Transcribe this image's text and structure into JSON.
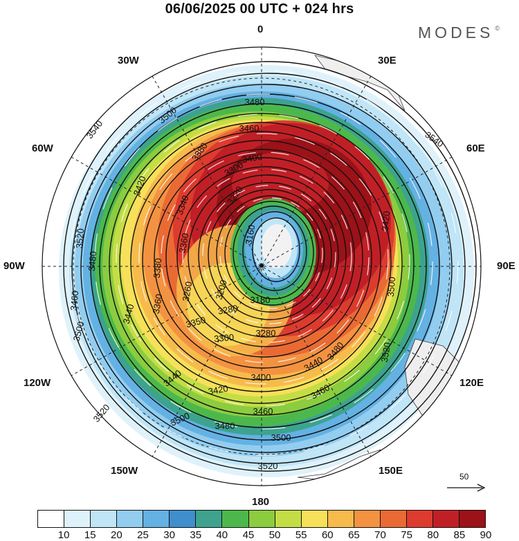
{
  "title": "06/06/2025  00 UTC  + 024 hrs",
  "brand": "MODES",
  "brand_mark": "©",
  "longitude_labels": {
    "lon_0": "0",
    "lon_30e": "30E",
    "lon_60e": "60E",
    "lon_90e": "90E",
    "lon_120e": "120E",
    "lon_150e": "150E",
    "lon_180": "180",
    "lon_150w": "150W",
    "lon_120w": "120W",
    "lon_90w": "90W",
    "lon_60w": "60W",
    "lon_30w": "30W"
  },
  "contour_labels": [
    "3540",
    "3500",
    "3480",
    "3460",
    "3400",
    "3380",
    "3300",
    "3220",
    "3420",
    "3340",
    "3160",
    "3520",
    "3480",
    "3380",
    "3360",
    "3260",
    "3200",
    "3180",
    "3460",
    "3360",
    "3280",
    "3500",
    "3440",
    "3350",
    "3300",
    "3280",
    "3440",
    "3420",
    "3400",
    "3460",
    "3520",
    "3500",
    "3480",
    "3500",
    "3520",
    "3520",
    "3500",
    "3480",
    "3460",
    "3440",
    "3420",
    "3540"
  ],
  "vector_scale": {
    "value": "50",
    "icon": "arrow-right-icon"
  },
  "colorbar": {
    "ticks": [
      "10",
      "15",
      "20",
      "25",
      "30",
      "35",
      "40",
      "45",
      "50",
      "55",
      "60",
      "65",
      "70",
      "75",
      "80",
      "85",
      "90"
    ],
    "colors": [
      "#ffffff",
      "#dff2fb",
      "#bfe5f7",
      "#92cdf0",
      "#64b1e3",
      "#3f8fcc",
      "#3da38f",
      "#4cb84c",
      "#8ccc3f",
      "#c5dd45",
      "#f7e05a",
      "#f7bb4c",
      "#f39341",
      "#ea6a34",
      "#dd3b2e",
      "#c11f26",
      "#9b1218"
    ]
  }
}
